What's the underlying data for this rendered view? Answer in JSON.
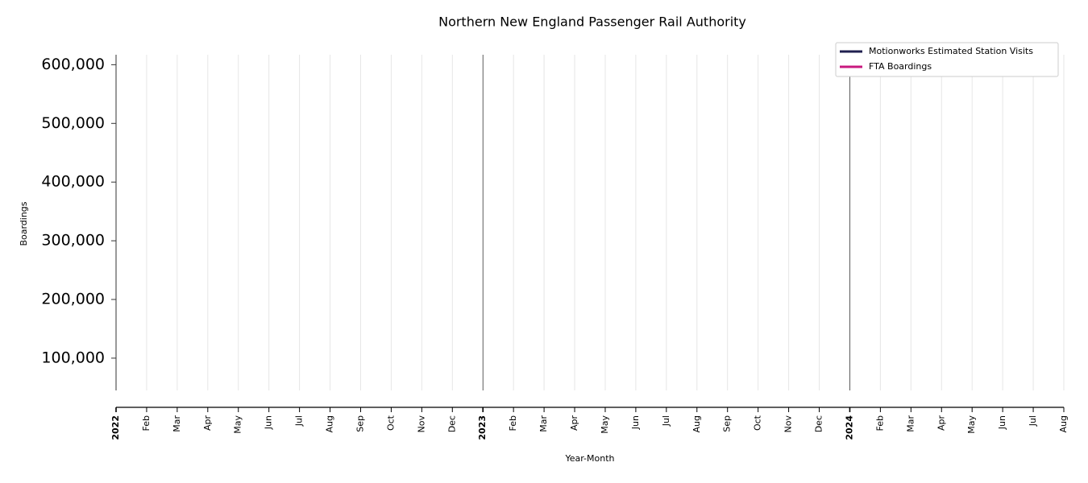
{
  "chart_data": {
    "type": "line",
    "title": "Northern New England Passenger Rail Authority",
    "xlabel": "Year-Month",
    "ylabel": "Boardings",
    "categories": [
      "2022",
      "Feb",
      "Mar",
      "Apr",
      "May",
      "Jun",
      "Jul",
      "Aug",
      "Sep",
      "Oct",
      "Nov",
      "Dec",
      "2023",
      "Feb",
      "Mar",
      "Apr",
      "May",
      "Jun",
      "Jul",
      "Aug",
      "Sep",
      "Oct",
      "Nov",
      "Dec",
      "2024",
      "Feb",
      "Mar",
      "Apr",
      "May",
      "Jun",
      "Jul",
      "Aug"
    ],
    "series": [
      {
        "name": "Motionworks Estimated Station Visits",
        "color": "#20204f",
        "values": [
          null,
          null,
          null,
          null,
          null,
          null,
          null,
          null,
          null,
          null,
          null,
          null,
          null,
          null,
          null,
          null,
          null,
          null,
          null,
          null,
          null,
          null,
          null,
          null,
          null,
          null,
          null,
          null,
          null,
          null,
          null,
          null
        ]
      },
      {
        "name": "FTA Boardings",
        "color": "#c8197f",
        "values": [
          null,
          null,
          null,
          null,
          null,
          null,
          null,
          null,
          null,
          null,
          null,
          null,
          null,
          null,
          null,
          null,
          null,
          null,
          null,
          null,
          null,
          null,
          null,
          null,
          null,
          null,
          null,
          null,
          null,
          null,
          null,
          null
        ]
      }
    ],
    "ylim": [
      45000,
      617000
    ],
    "yticks": [
      {
        "value": 100000,
        "label": "100,000"
      },
      {
        "value": 200000,
        "label": "200,000"
      },
      {
        "value": 300000,
        "label": "300,000"
      },
      {
        "value": 400000,
        "label": "400,000"
      },
      {
        "value": 500000,
        "label": "500,000"
      },
      {
        "value": 600000,
        "label": "600,000"
      }
    ],
    "grid": true,
    "legend": "upper-right"
  }
}
